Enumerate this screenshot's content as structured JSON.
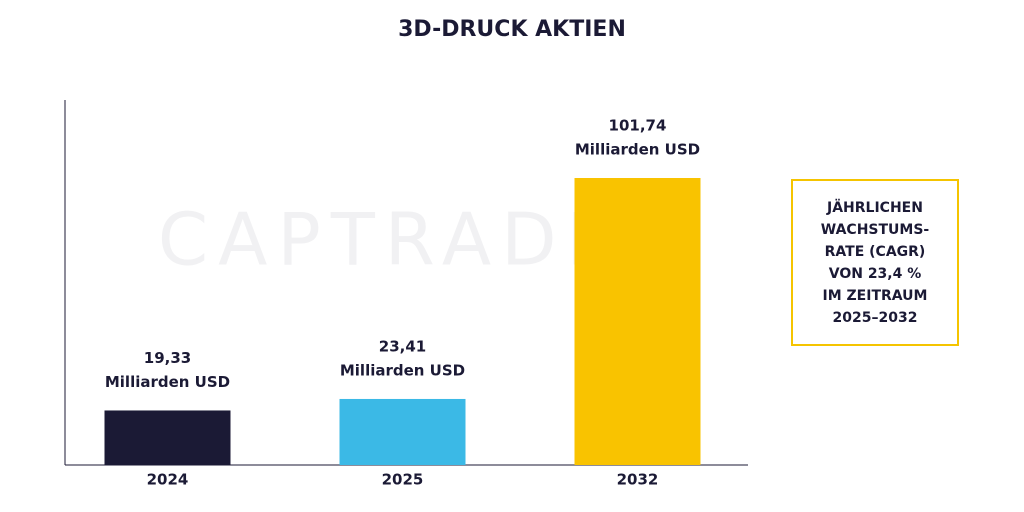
{
  "chart_data": {
    "type": "bar",
    "title": "3D-DRUCK AKTIEN",
    "watermark": "CAPTRADER",
    "categories": [
      "2024",
      "2025",
      "2032"
    ],
    "values": [
      19.33,
      23.41,
      101.74
    ],
    "value_labels": [
      "19,33",
      "23,41",
      "101,74"
    ],
    "value_label_unit": "Milliarden USD",
    "colors": [
      "#1b1a35",
      "#3bb9e6",
      "#f9c300"
    ],
    "annotation": {
      "lines": [
        "JÄHRLICHEN",
        "WACHSTUMS-",
        "RATE (CAGR)",
        "VON 23,4 %",
        "IM ZEITRAUM",
        "2025–2032"
      ],
      "border_color": "#f5c400"
    }
  }
}
